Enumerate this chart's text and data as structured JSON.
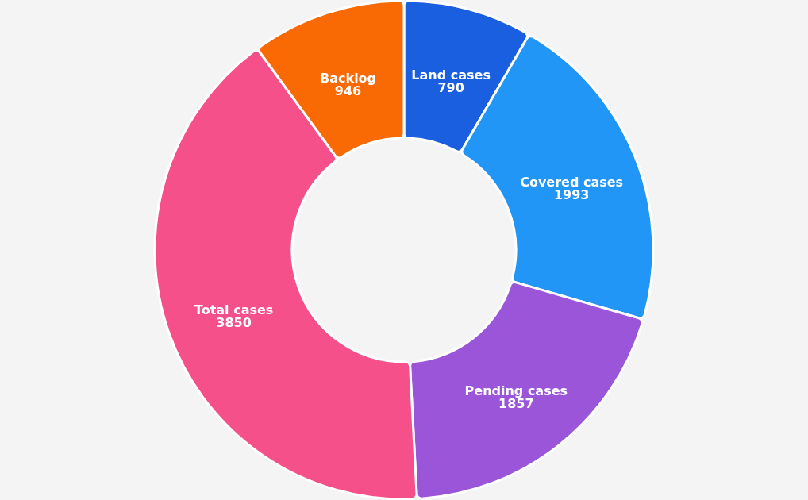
{
  "chart_data": {
    "type": "donut",
    "categories": [
      "Land cases",
      "Covered cases",
      "Pending cases",
      "Total cases",
      "Backlog"
    ],
    "values": [
      790,
      1993,
      1857,
      3850,
      946
    ],
    "colors": [
      "#1a5fe0",
      "#2196f7",
      "#9b55d9",
      "#f5508a",
      "#f96a04"
    ],
    "data_labels": true
  }
}
